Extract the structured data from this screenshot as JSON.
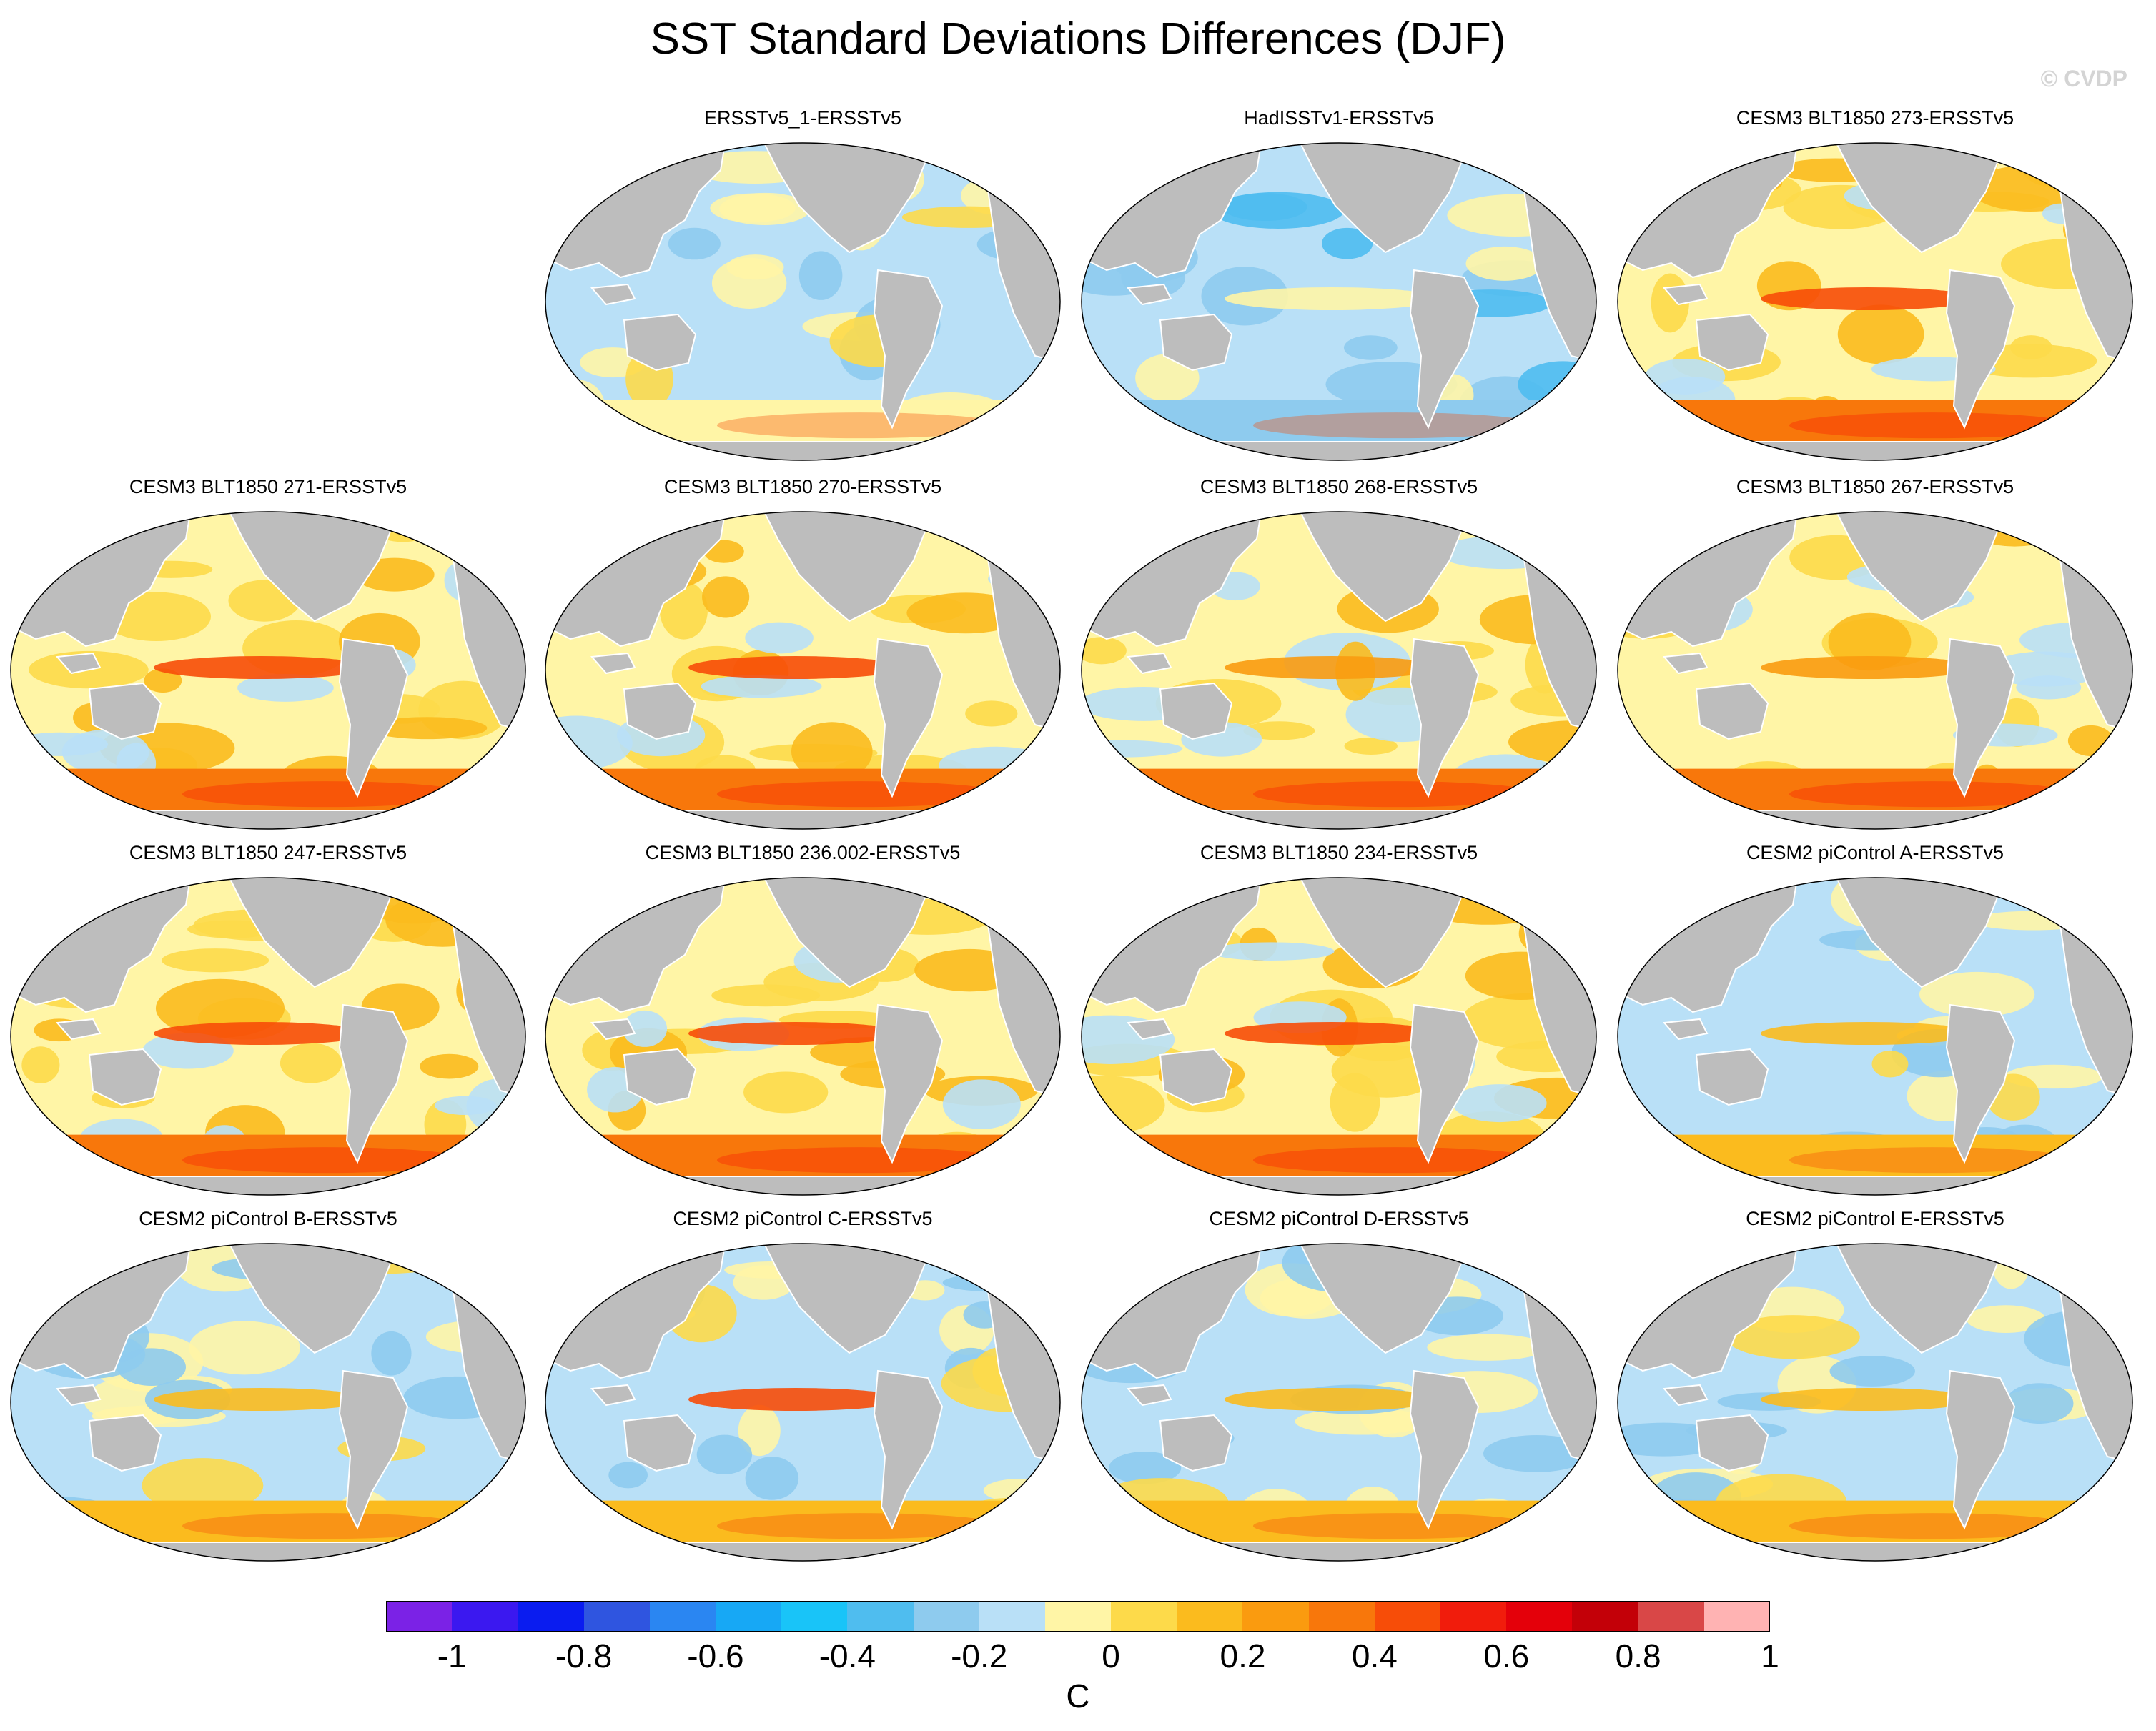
{
  "figure": {
    "title": "SST Standard Deviations Differences (DJF)",
    "credit": "© CVDP"
  },
  "map": {
    "type": "choropleth-panels",
    "projection": "Robinson (Pacific-centered)",
    "variable": "SST standard deviation difference",
    "land_color": "#bdbdbd",
    "panels": [
      {
        "title": "ERSSTv5_1-ERSSTv5",
        "pattern": "weak-mixed"
      },
      {
        "title": "HadISSTv1-ERSSTv5",
        "pattern": "cool-pacific"
      },
      {
        "title": "CESM3 BLT1850 273-ERSSTv5",
        "pattern": "warm-strong"
      },
      {
        "title": "CESM3 BLT1850 271-ERSSTv5",
        "pattern": "warm-strong"
      },
      {
        "title": "CESM3 BLT1850 270-ERSSTv5",
        "pattern": "warm-strong"
      },
      {
        "title": "CESM3 BLT1850 268-ERSSTv5",
        "pattern": "warm-moderate"
      },
      {
        "title": "CESM3 BLT1850 267-ERSSTv5",
        "pattern": "warm-moderate"
      },
      {
        "title": "CESM3 BLT1850 247-ERSSTv5",
        "pattern": "warm-strong"
      },
      {
        "title": "CESM3 BLT1850 236.002-ERSSTv5",
        "pattern": "warm-strong"
      },
      {
        "title": "CESM3 BLT1850 234-ERSSTv5",
        "pattern": "warm-strong"
      },
      {
        "title": "CESM2 piControl A-ERSSTv5",
        "pattern": "mixed-equatorial"
      },
      {
        "title": "CESM2 piControl B-ERSSTv5",
        "pattern": "mixed-equatorial"
      },
      {
        "title": "CESM2 piControl C-ERSSTv5",
        "pattern": "mixed-equatorial-strong"
      },
      {
        "title": "CESM2 piControl D-ERSSTv5",
        "pattern": "mixed-equatorial"
      },
      {
        "title": "CESM2 piControl E-ERSSTv5",
        "pattern": "mixed-equatorial"
      }
    ]
  },
  "colorbar": {
    "colors": [
      "#7b22e6",
      "#3b18f0",
      "#0a1cf0",
      "#2f55e0",
      "#2a86f2",
      "#17a8f5",
      "#19c4f8",
      "#4fbdef",
      "#8ecbee",
      "#b9e0f7",
      "#fff5a6",
      "#fdda4a",
      "#fbbb1e",
      "#fa9b0f",
      "#f8770b",
      "#f74d08",
      "#f11c0c",
      "#e4000a",
      "#c30008",
      "#d94747",
      "#ffb3b3"
    ],
    "labels": [
      "-1",
      "-0.8",
      "-0.6",
      "-0.4",
      "-0.2",
      "0",
      "0.2",
      "0.4",
      "0.6",
      "0.8",
      "1"
    ],
    "unit": "C"
  }
}
